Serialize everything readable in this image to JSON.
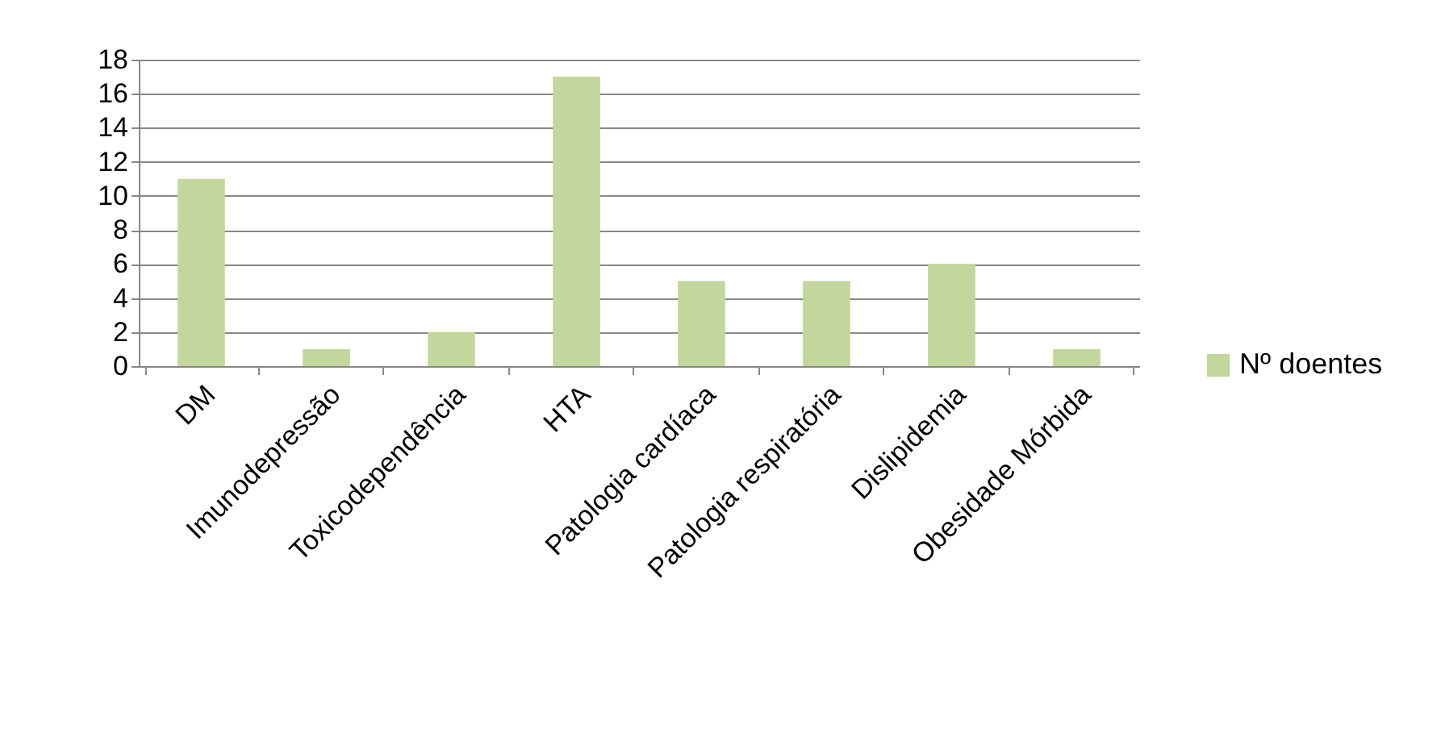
{
  "chart_data": {
    "type": "bar",
    "categories": [
      "DM",
      "Imunodepressão",
      "Toxicodependência",
      "HTA",
      "Patologia cardíaca",
      "Patologia respiratória",
      "Dislipidemia",
      "Obesidade Mórbida"
    ],
    "series": [
      {
        "name": "Nº doentes",
        "color": "#c3d69b",
        "values": [
          11,
          1,
          2,
          17,
          5,
          5,
          6,
          1
        ]
      }
    ],
    "ylim": [
      0,
      18
    ],
    "yticks": [
      0,
      2,
      4,
      6,
      8,
      10,
      12,
      14,
      16,
      18
    ],
    "grid": "y",
    "legend": "right"
  }
}
